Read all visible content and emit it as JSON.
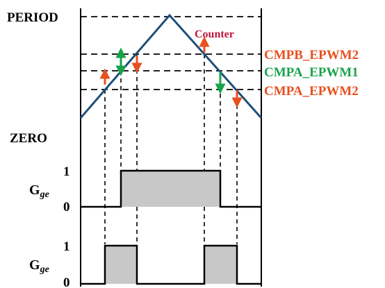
{
  "labels": {
    "period": "PERIOD",
    "zero": "ZERO",
    "counter": "Counter",
    "cmpb_epwm2": "CMPB_EPWM2",
    "cmpa_epwm1": "CMPA_EPWM1",
    "cmpa_epwm2": "CMPA_EPWM2"
  },
  "signals": {
    "gge1": {
      "base": "G",
      "sub": "ge",
      "high": "1",
      "low": "0"
    },
    "gge2": {
      "base": "G",
      "sub": "ge",
      "high": "1",
      "low": "0"
    }
  },
  "colors": {
    "counter_line": "#1f4e79",
    "counter_label": "#c0143c",
    "orange": "#e8501e",
    "green": "#18a34a",
    "shade": "#c8c8c8"
  }
}
